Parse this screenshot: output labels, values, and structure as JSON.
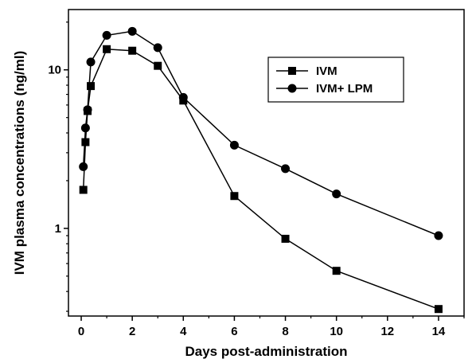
{
  "chart_data": {
    "type": "line",
    "title": "",
    "xlabel": "Days post-administration",
    "ylabel": "IVM plasma concentrations (ng/ml)",
    "xlim": [
      -0.5,
      15
    ],
    "ylim": [
      0.28,
      24
    ],
    "y_scale": "log",
    "x_ticks": [
      0,
      2,
      4,
      6,
      8,
      10,
      12,
      14
    ],
    "x_tick_labels": [
      "0",
      "2",
      "4",
      "6",
      "8",
      "10",
      "12",
      "14"
    ],
    "y_ticks": [
      1,
      10
    ],
    "y_tick_labels": [
      "1",
      "10"
    ],
    "grid": false,
    "legend_position": "top-right",
    "series": [
      {
        "name": "IVM",
        "marker": "square",
        "x": [
          0.083,
          0.167,
          0.25,
          0.375,
          1,
          2,
          3,
          4,
          6,
          8,
          10,
          14
        ],
        "y": [
          1.75,
          3.5,
          5.5,
          7.9,
          13.5,
          13.2,
          10.6,
          6.4,
          1.6,
          0.86,
          0.54,
          0.31
        ]
      },
      {
        "name": "IVM+ LPM",
        "marker": "circle",
        "x": [
          0.083,
          0.167,
          0.25,
          0.375,
          1,
          2,
          3,
          4,
          6,
          8,
          10,
          14
        ],
        "y": [
          2.45,
          4.3,
          5.6,
          11.2,
          16.5,
          17.5,
          13.8,
          6.7,
          3.35,
          2.38,
          1.65,
          0.9
        ]
      }
    ]
  }
}
